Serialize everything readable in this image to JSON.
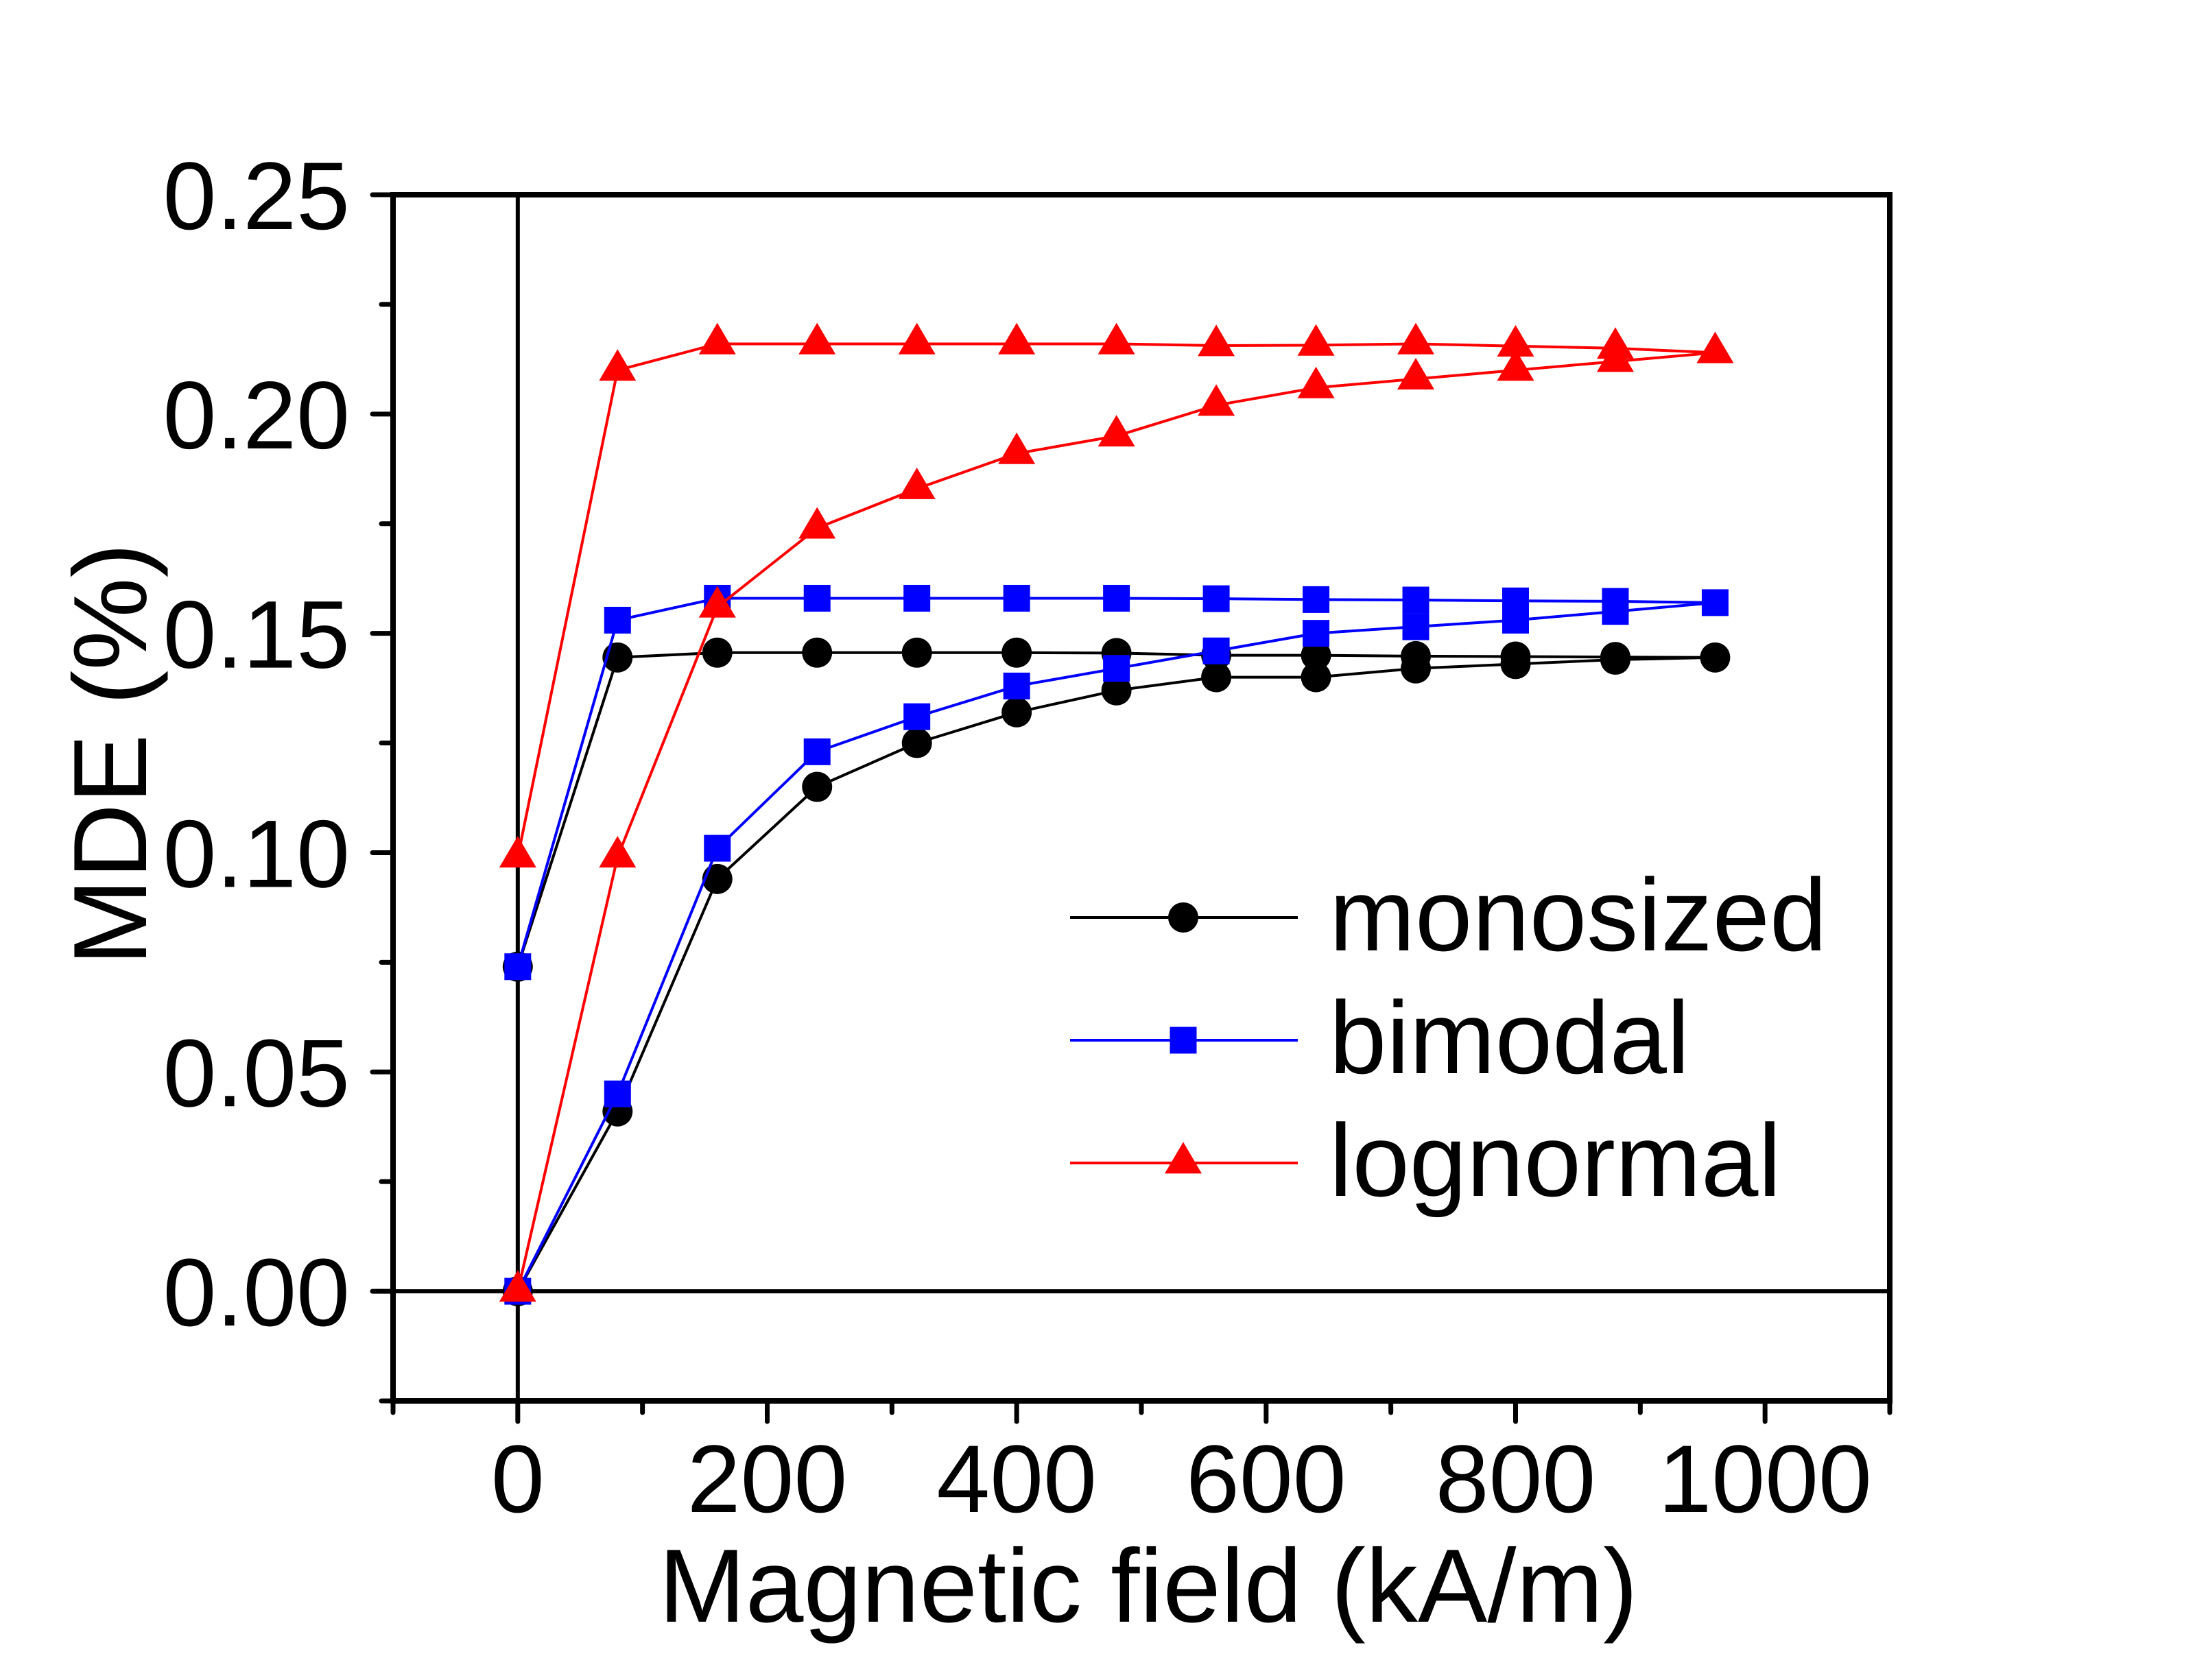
{
  "chart_data": {
    "type": "line",
    "title": "",
    "xlabel": "Magnetic field (kA/m)",
    "ylabel": "MDE (%)",
    "xlim": [
      -100,
      1100
    ],
    "ylim": [
      -0.025,
      0.25
    ],
    "x_major_ticks": [
      0,
      200,
      400,
      600,
      800,
      1000
    ],
    "x_tick_labels": [
      "0",
      "200",
      "400",
      "600",
      "800",
      "1000"
    ],
    "x_minor_ticks": [
      -100,
      100,
      300,
      500,
      700,
      900,
      1100
    ],
    "y_major_ticks": [
      0.0,
      0.05,
      0.1,
      0.15,
      0.2,
      0.25
    ],
    "y_tick_labels": [
      "0.00",
      "0.05",
      "0.10",
      "0.15",
      "0.20",
      "0.25"
    ],
    "y_minor_ticks": [
      -0.025,
      0.025,
      0.075,
      0.125,
      0.175,
      0.225
    ],
    "reference_lines": {
      "x_zero": 0,
      "y_zero": 0
    },
    "grid": false,
    "legend": {
      "placement": "lower-right",
      "entries": [
        "monosized",
        "bimodal",
        "lognormal"
      ]
    },
    "series": [
      {
        "name": "monosized",
        "color": "#000000",
        "marker": "circle",
        "x": [
          0,
          80,
          160,
          240,
          320,
          400,
          480,
          560,
          640,
          720,
          800,
          880,
          960,
          880,
          800,
          720,
          640,
          560,
          480,
          400,
          320,
          240,
          160,
          80,
          0
        ],
        "y": [
          0.0,
          0.041,
          0.094,
          0.115,
          0.125,
          0.132,
          0.137,
          0.14,
          0.14,
          0.142,
          0.143,
          0.144,
          0.1445,
          0.1446,
          0.1447,
          0.1448,
          0.145,
          0.145,
          0.1455,
          0.1456,
          0.1456,
          0.1456,
          0.1456,
          0.1445,
          0.074
        ]
      },
      {
        "name": "bimodal",
        "color": "#0000FF",
        "marker": "square",
        "x": [
          0,
          80,
          160,
          240,
          320,
          400,
          480,
          560,
          640,
          720,
          800,
          880,
          960,
          880,
          800,
          720,
          640,
          560,
          480,
          400,
          320,
          240,
          160,
          80,
          0
        ],
        "y": [
          0.0,
          0.045,
          0.101,
          0.123,
          0.131,
          0.138,
          0.142,
          0.146,
          0.15,
          0.1515,
          0.153,
          0.155,
          0.157,
          0.1573,
          0.1574,
          0.1576,
          0.1577,
          0.1579,
          0.158,
          0.158,
          0.158,
          0.158,
          0.158,
          0.153,
          0.074
        ]
      },
      {
        "name": "lognormal",
        "color": "#FF0000",
        "marker": "triangle",
        "x": [
          0,
          80,
          160,
          240,
          320,
          400,
          480,
          560,
          640,
          720,
          800,
          880,
          960,
          880,
          800,
          720,
          640,
          560,
          480,
          400,
          320,
          240,
          160,
          80,
          0
        ],
        "y": [
          0.0,
          0.099,
          0.156,
          0.174,
          0.183,
          0.191,
          0.195,
          0.202,
          0.206,
          0.208,
          0.21,
          0.212,
          0.214,
          0.215,
          0.2155,
          0.216,
          0.2157,
          0.2156,
          0.216,
          0.216,
          0.216,
          0.216,
          0.216,
          0.21,
          0.099
        ]
      }
    ]
  }
}
